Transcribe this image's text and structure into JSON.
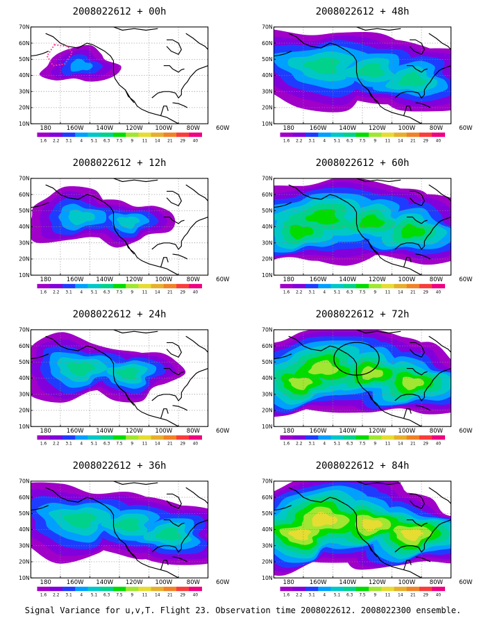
{
  "panels": [
    {
      "title": "2008022612 + 00h",
      "forecast_hour": 0,
      "intensity": 0.25,
      "coverage": 0.35,
      "annotation": "dotted-polygon"
    },
    {
      "title": "2008022612 + 12h",
      "forecast_hour": 12,
      "intensity": 0.35,
      "coverage": 0.55,
      "annotation": "none"
    },
    {
      "title": "2008022612 + 24h",
      "forecast_hour": 24,
      "intensity": 0.42,
      "coverage": 0.65,
      "annotation": "none"
    },
    {
      "title": "2008022612 + 36h",
      "forecast_hour": 36,
      "intensity": 0.45,
      "coverage": 0.78,
      "annotation": "none"
    },
    {
      "title": "2008022612 + 48h",
      "forecast_hour": 48,
      "intensity": 0.45,
      "coverage": 0.85,
      "annotation": "none"
    },
    {
      "title": "2008022612 + 60h",
      "forecast_hour": 60,
      "intensity": 0.55,
      "coverage": 0.9,
      "annotation": "none"
    },
    {
      "title": "2008022612 + 72h",
      "forecast_hour": 72,
      "intensity": 0.68,
      "coverage": 0.92,
      "annotation": "circle"
    },
    {
      "title": "2008022612 + 84h",
      "forecast_hour": 84,
      "intensity": 0.8,
      "coverage": 0.95,
      "annotation": "none"
    }
  ],
  "axes": {
    "lat_labels": [
      "70N",
      "60N",
      "50N",
      "40N",
      "30N",
      "20N",
      "10N"
    ],
    "lon_labels": [
      "180",
      "160W",
      "140W",
      "120W",
      "100W",
      "80W",
      "60W"
    ]
  },
  "colorbar": {
    "levels": [
      "1.6",
      "2.2",
      "3.1",
      "4",
      "5.1",
      "6.3",
      "7.5",
      "9",
      "11",
      "14",
      "21",
      "29",
      "40"
    ],
    "colors": [
      "#a000c8",
      "#8200dc",
      "#1e3cff",
      "#00a0ff",
      "#00c8c8",
      "#00d28c",
      "#00dc00",
      "#a0e632",
      "#e6dc32",
      "#e6af2d",
      "#f08228",
      "#fa3c3c",
      "#f00082"
    ]
  },
  "caption": "Signal Variance for u,v,T. Flight 23. Observation time 2008022612. 2008022300 ensemble."
}
